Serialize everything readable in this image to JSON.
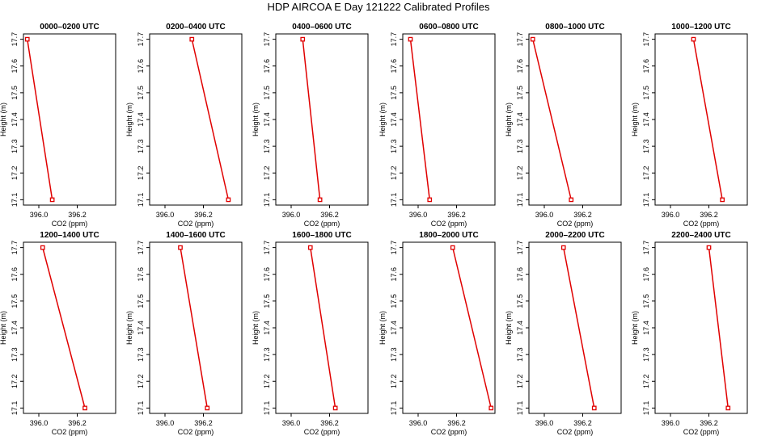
{
  "title": "HDP AIRCOA E  Day 121222  Calibrated Profiles",
  "colors": {
    "line": "#e00000",
    "axis": "#000000"
  },
  "chart_data": {
    "type": "line",
    "xlabel": "CO2 (ppm)",
    "ylabel": "Height (m)",
    "xlim": [
      395.92,
      396.4
    ],
    "ylim": [
      17.08,
      17.72
    ],
    "xticks": [
      "396.0",
      "396.2"
    ],
    "xtick_values": [
      396.0,
      396.2
    ],
    "yticks": [
      "17.1",
      "17.2",
      "17.3",
      "17.4",
      "17.5",
      "17.6",
      "17.7"
    ],
    "ytick_values": [
      17.1,
      17.2,
      17.3,
      17.4,
      17.5,
      17.6,
      17.7
    ],
    "panels": [
      {
        "title": "0000–0200 UTC",
        "points": [
          {
            "x": 395.94,
            "y": 17.7
          },
          {
            "x": 396.07,
            "y": 17.1
          }
        ]
      },
      {
        "title": "0200–0400 UTC",
        "points": [
          {
            "x": 396.14,
            "y": 17.7
          },
          {
            "x": 396.33,
            "y": 17.1
          }
        ]
      },
      {
        "title": "0400–0600 UTC",
        "points": [
          {
            "x": 396.06,
            "y": 17.7
          },
          {
            "x": 396.15,
            "y": 17.1
          }
        ]
      },
      {
        "title": "0600–0800 UTC",
        "points": [
          {
            "x": 395.96,
            "y": 17.7
          },
          {
            "x": 396.06,
            "y": 17.1
          }
        ]
      },
      {
        "title": "0800–1000 UTC",
        "points": [
          {
            "x": 395.94,
            "y": 17.7
          },
          {
            "x": 396.14,
            "y": 17.1
          }
        ]
      },
      {
        "title": "1000–1200 UTC",
        "points": [
          {
            "x": 396.12,
            "y": 17.7
          },
          {
            "x": 396.27,
            "y": 17.1
          }
        ]
      },
      {
        "title": "1200–1400 UTC",
        "points": [
          {
            "x": 396.02,
            "y": 17.7
          },
          {
            "x": 396.24,
            "y": 17.1
          }
        ]
      },
      {
        "title": "1400–1600 UTC",
        "points": [
          {
            "x": 396.08,
            "y": 17.7
          },
          {
            "x": 396.22,
            "y": 17.1
          }
        ]
      },
      {
        "title": "1600–1800 UTC",
        "points": [
          {
            "x": 396.1,
            "y": 17.7
          },
          {
            "x": 396.23,
            "y": 17.1
          }
        ]
      },
      {
        "title": "1800–2000 UTC",
        "points": [
          {
            "x": 396.18,
            "y": 17.7
          },
          {
            "x": 396.38,
            "y": 17.1
          }
        ]
      },
      {
        "title": "2000–2200 UTC",
        "points": [
          {
            "x": 396.1,
            "y": 17.7
          },
          {
            "x": 396.26,
            "y": 17.1
          }
        ]
      },
      {
        "title": "2200–2400 UTC",
        "points": [
          {
            "x": 396.2,
            "y": 17.7
          },
          {
            "x": 396.3,
            "y": 17.1
          }
        ]
      }
    ]
  }
}
